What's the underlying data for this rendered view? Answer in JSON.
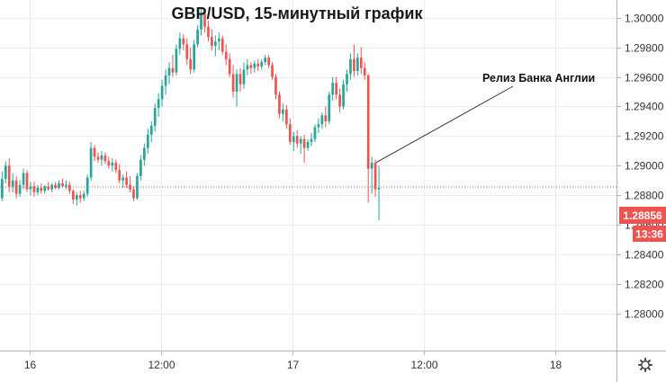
{
  "chart_data": {
    "type": "candlestick",
    "title": "GBP/USD, 15-минутный график",
    "ylim": [
      1.2775,
      1.3012
    ],
    "y_ticks": [
      "1.30000",
      "1.29800",
      "1.29600",
      "1.29400",
      "1.29200",
      "1.29000",
      "1.28800",
      "1.28600",
      "1.28400",
      "1.28200",
      "1.28000"
    ],
    "x_ticks": [
      {
        "index": 8,
        "label": "16"
      },
      {
        "index": 45,
        "label": "12:00"
      },
      {
        "index": 82,
        "label": "17"
      },
      {
        "index": 119,
        "label": "12:00"
      },
      {
        "index": 156,
        "label": "18"
      }
    ],
    "grid": true,
    "colors": {
      "up": "#26a69a",
      "down": "#ef5350",
      "grid": "#ececec",
      "axis": "#b2b5be",
      "tag": "#ef5350"
    },
    "candles": [
      [
        1.2878,
        1.2896,
        1.2876,
        1.2891
      ],
      [
        1.2891,
        1.2903,
        1.2888,
        1.29
      ],
      [
        1.29,
        1.2905,
        1.2882,
        1.2886
      ],
      [
        1.2886,
        1.2895,
        1.2882,
        1.289
      ],
      [
        1.289,
        1.2893,
        1.2878,
        1.2881
      ],
      [
        1.2881,
        1.289,
        1.2879,
        1.2887
      ],
      [
        1.2887,
        1.2898,
        1.2884,
        1.2895
      ],
      [
        1.2895,
        1.2897,
        1.2882,
        1.2884
      ],
      [
        1.2884,
        1.2889,
        1.288,
        1.2886
      ],
      [
        1.2886,
        1.2889,
        1.2879,
        1.2882
      ],
      [
        1.2882,
        1.2887,
        1.288,
        1.2885
      ],
      [
        1.2885,
        1.2888,
        1.2881,
        1.2883
      ],
      [
        1.2883,
        1.2887,
        1.2881,
        1.2886
      ],
      [
        1.2886,
        1.2889,
        1.2883,
        1.2884
      ],
      [
        1.2884,
        1.2888,
        1.2882,
        1.2887
      ],
      [
        1.2887,
        1.2889,
        1.2884,
        1.2885
      ],
      [
        1.2885,
        1.289,
        1.2884,
        1.2888
      ],
      [
        1.2888,
        1.2891,
        1.2885,
        1.2886
      ],
      [
        1.2886,
        1.289,
        1.2884,
        1.2887
      ],
      [
        1.2887,
        1.2889,
        1.2881,
        1.2883
      ],
      [
        1.2883,
        1.2884,
        1.2874,
        1.2877
      ],
      [
        1.2877,
        1.2882,
        1.2873,
        1.288
      ],
      [
        1.288,
        1.2883,
        1.2875,
        1.2878
      ],
      [
        1.2878,
        1.2883,
        1.2876,
        1.2881
      ],
      [
        1.2881,
        1.2894,
        1.2879,
        1.2892
      ],
      [
        1.2892,
        1.2916,
        1.289,
        1.2912
      ],
      [
        1.2912,
        1.2914,
        1.2903,
        1.2906
      ],
      [
        1.2906,
        1.2909,
        1.2902,
        1.2904
      ],
      [
        1.2904,
        1.291,
        1.29,
        1.2907
      ],
      [
        1.2907,
        1.2909,
        1.2901,
        1.2903
      ],
      [
        1.2903,
        1.2906,
        1.2898,
        1.29
      ],
      [
        1.29,
        1.2905,
        1.2896,
        1.2902
      ],
      [
        1.2902,
        1.2904,
        1.2895,
        1.2897
      ],
      [
        1.2897,
        1.2901,
        1.2888,
        1.289
      ],
      [
        1.289,
        1.2894,
        1.2885,
        1.2892
      ],
      [
        1.2892,
        1.2896,
        1.2885,
        1.2887
      ],
      [
        1.2887,
        1.2893,
        1.2882,
        1.2884
      ],
      [
        1.2884,
        1.2886,
        1.2876,
        1.2878
      ],
      [
        1.2878,
        1.2895,
        1.2877,
        1.2893
      ],
      [
        1.2893,
        1.2907,
        1.289,
        1.2904
      ],
      [
        1.2904,
        1.2915,
        1.29,
        1.2912
      ],
      [
        1.2912,
        1.2925,
        1.2908,
        1.2921
      ],
      [
        1.2921,
        1.293,
        1.2916,
        1.2927
      ],
      [
        1.2927,
        1.2942,
        1.2923,
        1.2939
      ],
      [
        1.2939,
        1.2949,
        1.2933,
        1.2945
      ],
      [
        1.2945,
        1.2958,
        1.294,
        1.2954
      ],
      [
        1.2954,
        1.2965,
        1.2948,
        1.2961
      ],
      [
        1.2961,
        1.297,
        1.2955,
        1.2966
      ],
      [
        1.2966,
        1.2975,
        1.296,
        1.2963
      ],
      [
        1.2963,
        1.2982,
        1.2961,
        1.2979
      ],
      [
        1.2979,
        1.299,
        1.2975,
        1.2986
      ],
      [
        1.2986,
        1.2989,
        1.2978,
        1.2982
      ],
      [
        1.2982,
        1.2986,
        1.2968,
        1.2972
      ],
      [
        1.2972,
        1.298,
        1.2962,
        1.2965
      ],
      [
        1.2965,
        1.2985,
        1.2963,
        1.2982
      ],
      [
        1.2982,
        1.2995,
        1.298,
        1.2992
      ],
      [
        1.2992,
        1.3007,
        1.2988,
        1.3003
      ],
      [
        1.3003,
        1.3006,
        1.299,
        1.2994
      ],
      [
        1.2994,
        1.2998,
        1.2984,
        1.2987
      ],
      [
        1.2987,
        1.2992,
        1.2978,
        1.2981
      ],
      [
        1.2981,
        1.2988,
        1.2974,
        1.2984
      ],
      [
        1.2984,
        1.299,
        1.2978,
        1.2986
      ],
      [
        1.2986,
        1.2988,
        1.2975,
        1.2977
      ],
      [
        1.2977,
        1.2982,
        1.2968,
        1.2972
      ],
      [
        1.2972,
        1.2976,
        1.296,
        1.2962
      ],
      [
        1.2962,
        1.2968,
        1.2946,
        1.295
      ],
      [
        1.295,
        1.2965,
        1.294,
        1.2962
      ],
      [
        1.2962,
        1.2966,
        1.295,
        1.2955
      ],
      [
        1.2955,
        1.297,
        1.2952,
        1.2965
      ],
      [
        1.2965,
        1.2972,
        1.2961,
        1.2968
      ],
      [
        1.2968,
        1.297,
        1.2962,
        1.2966
      ],
      [
        1.2966,
        1.2971,
        1.2963,
        1.2969
      ],
      [
        1.2969,
        1.2972,
        1.2964,
        1.2967
      ],
      [
        1.2967,
        1.2972,
        1.2965,
        1.297
      ],
      [
        1.297,
        1.2975,
        1.2968,
        1.2973
      ],
      [
        1.2973,
        1.2975,
        1.2966,
        1.2968
      ],
      [
        1.2968,
        1.297,
        1.2958,
        1.296
      ],
      [
        1.296,
        1.2962,
        1.2945,
        1.2948
      ],
      [
        1.2948,
        1.295,
        1.2932,
        1.2935
      ],
      [
        1.2935,
        1.2942,
        1.293,
        1.2938
      ],
      [
        1.2938,
        1.2941,
        1.2925,
        1.2928
      ],
      [
        1.2928,
        1.2932,
        1.2914,
        1.2916
      ],
      [
        1.2916,
        1.2923,
        1.291,
        1.292
      ],
      [
        1.292,
        1.2924,
        1.2912,
        1.2915
      ],
      [
        1.2915,
        1.292,
        1.2908,
        1.2918
      ],
      [
        1.2918,
        1.2921,
        1.2902,
        1.2912
      ],
      [
        1.2912,
        1.2918,
        1.291,
        1.2916
      ],
      [
        1.2916,
        1.2922,
        1.2913,
        1.2918
      ],
      [
        1.2918,
        1.2928,
        1.2916,
        1.2926
      ],
      [
        1.2926,
        1.2932,
        1.2922,
        1.2928
      ],
      [
        1.2928,
        1.2936,
        1.2925,
        1.2934
      ],
      [
        1.2934,
        1.294,
        1.2926,
        1.293
      ],
      [
        1.293,
        1.295,
        1.2928,
        1.2948
      ],
      [
        1.2948,
        1.296,
        1.2944,
        1.2956
      ],
      [
        1.2956,
        1.296,
        1.2945,
        1.2948
      ],
      [
        1.2948,
        1.2952,
        1.2936,
        1.294
      ],
      [
        1.294,
        1.2958,
        1.2938,
        1.2955
      ],
      [
        1.2955,
        1.2965,
        1.295,
        1.2962
      ],
      [
        1.2962,
        1.2976,
        1.2958,
        1.2972
      ],
      [
        1.2972,
        1.2982,
        1.296,
        1.2964
      ],
      [
        1.2964,
        1.2976,
        1.2961,
        1.2973
      ],
      [
        1.2973,
        1.298,
        1.2962,
        1.2966
      ],
      [
        1.2966,
        1.297,
        1.2958,
        1.2961
      ],
      [
        1.2961,
        1.2962,
        1.2875,
        1.2898
      ],
      [
        1.2898,
        1.2906,
        1.2881,
        1.2902
      ],
      [
        1.2902,
        1.2904,
        1.2879,
        1.2884
      ],
      [
        1.2884,
        1.29,
        1.2863,
        1.2885
      ]
    ],
    "last_price": {
      "label": "1.28856",
      "value": 1.28856,
      "time_label": "13:36"
    },
    "annotation": {
      "text": "Релиз Банка Англии",
      "candle_index": 105
    }
  },
  "toolbar": {
    "settings_icon": "gear-icon"
  }
}
